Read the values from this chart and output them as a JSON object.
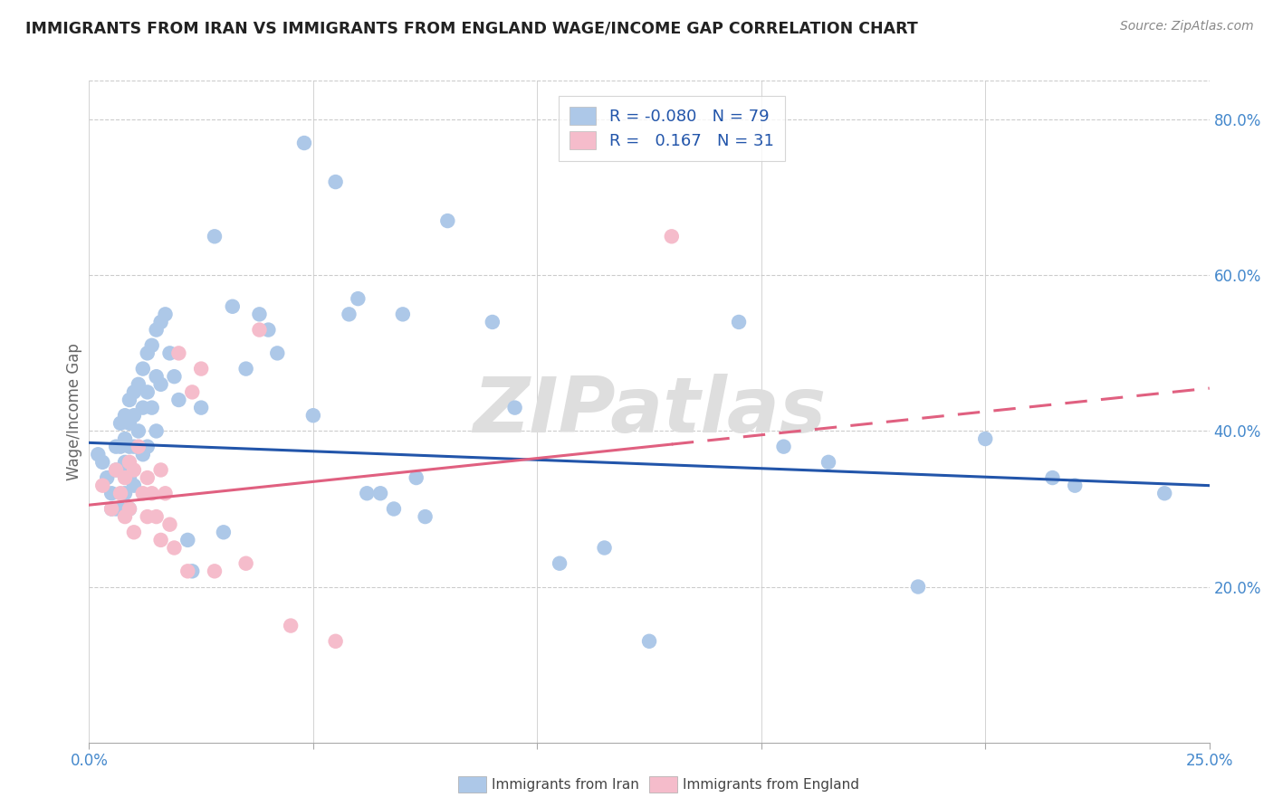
{
  "title": "IMMIGRANTS FROM IRAN VS IMMIGRANTS FROM ENGLAND WAGE/INCOME GAP CORRELATION CHART",
  "source": "Source: ZipAtlas.com",
  "ylabel": "Wage/Income Gap",
  "xlim": [
    0.0,
    0.25
  ],
  "ylim": [
    0.0,
    0.85
  ],
  "xticks": [
    0.0,
    0.05,
    0.1,
    0.15,
    0.2,
    0.25
  ],
  "xticklabels": [
    "0.0%",
    "",
    "",
    "",
    "",
    "25.0%"
  ],
  "yticks": [
    0.0,
    0.2,
    0.4,
    0.6,
    0.8
  ],
  "yticklabels": [
    "",
    "20.0%",
    "40.0%",
    "60.0%",
    "80.0%"
  ],
  "iran_R": "-0.080",
  "iran_N": "79",
  "england_R": "0.167",
  "england_N": "31",
  "iran_color": "#adc8e8",
  "england_color": "#f5bccb",
  "iran_line_color": "#2255aa",
  "england_line_color": "#e06080",
  "watermark": "ZIPatlas",
  "iran_intercept": 0.385,
  "iran_slope": -0.22,
  "england_intercept": 0.305,
  "england_slope": 0.6,
  "iran_points_x": [
    0.002,
    0.003,
    0.004,
    0.005,
    0.005,
    0.006,
    0.006,
    0.006,
    0.007,
    0.007,
    0.007,
    0.007,
    0.008,
    0.008,
    0.008,
    0.008,
    0.009,
    0.009,
    0.009,
    0.009,
    0.009,
    0.01,
    0.01,
    0.01,
    0.01,
    0.011,
    0.011,
    0.012,
    0.012,
    0.012,
    0.013,
    0.013,
    0.013,
    0.014,
    0.014,
    0.015,
    0.015,
    0.015,
    0.016,
    0.016,
    0.017,
    0.018,
    0.019,
    0.02,
    0.022,
    0.023,
    0.025,
    0.028,
    0.03,
    0.032,
    0.035,
    0.038,
    0.04,
    0.042,
    0.048,
    0.05,
    0.055,
    0.058,
    0.06,
    0.062,
    0.065,
    0.068,
    0.07,
    0.073,
    0.075,
    0.08,
    0.09,
    0.095,
    0.105,
    0.115,
    0.125,
    0.145,
    0.155,
    0.165,
    0.185,
    0.2,
    0.215,
    0.22,
    0.24
  ],
  "iran_points_y": [
    0.37,
    0.36,
    0.34,
    0.32,
    0.3,
    0.38,
    0.35,
    0.3,
    0.41,
    0.38,
    0.35,
    0.3,
    0.42,
    0.39,
    0.36,
    0.32,
    0.44,
    0.41,
    0.38,
    0.34,
    0.3,
    0.45,
    0.42,
    0.38,
    0.33,
    0.46,
    0.4,
    0.48,
    0.43,
    0.37,
    0.5,
    0.45,
    0.38,
    0.51,
    0.43,
    0.53,
    0.47,
    0.4,
    0.54,
    0.46,
    0.55,
    0.5,
    0.47,
    0.44,
    0.26,
    0.22,
    0.43,
    0.65,
    0.27,
    0.56,
    0.48,
    0.55,
    0.53,
    0.5,
    0.77,
    0.42,
    0.72,
    0.55,
    0.57,
    0.32,
    0.32,
    0.3,
    0.55,
    0.34,
    0.29,
    0.67,
    0.54,
    0.43,
    0.23,
    0.25,
    0.13,
    0.54,
    0.38,
    0.36,
    0.2,
    0.39,
    0.34,
    0.33,
    0.32
  ],
  "england_points_x": [
    0.003,
    0.005,
    0.006,
    0.007,
    0.008,
    0.008,
    0.009,
    0.009,
    0.01,
    0.01,
    0.011,
    0.012,
    0.013,
    0.013,
    0.014,
    0.015,
    0.016,
    0.016,
    0.017,
    0.018,
    0.019,
    0.02,
    0.022,
    0.023,
    0.025,
    0.028,
    0.035,
    0.038,
    0.045,
    0.055,
    0.13
  ],
  "england_points_y": [
    0.33,
    0.3,
    0.35,
    0.32,
    0.34,
    0.29,
    0.36,
    0.3,
    0.35,
    0.27,
    0.38,
    0.32,
    0.34,
    0.29,
    0.32,
    0.29,
    0.35,
    0.26,
    0.32,
    0.28,
    0.25,
    0.5,
    0.22,
    0.45,
    0.48,
    0.22,
    0.23,
    0.53,
    0.15,
    0.13,
    0.65
  ]
}
